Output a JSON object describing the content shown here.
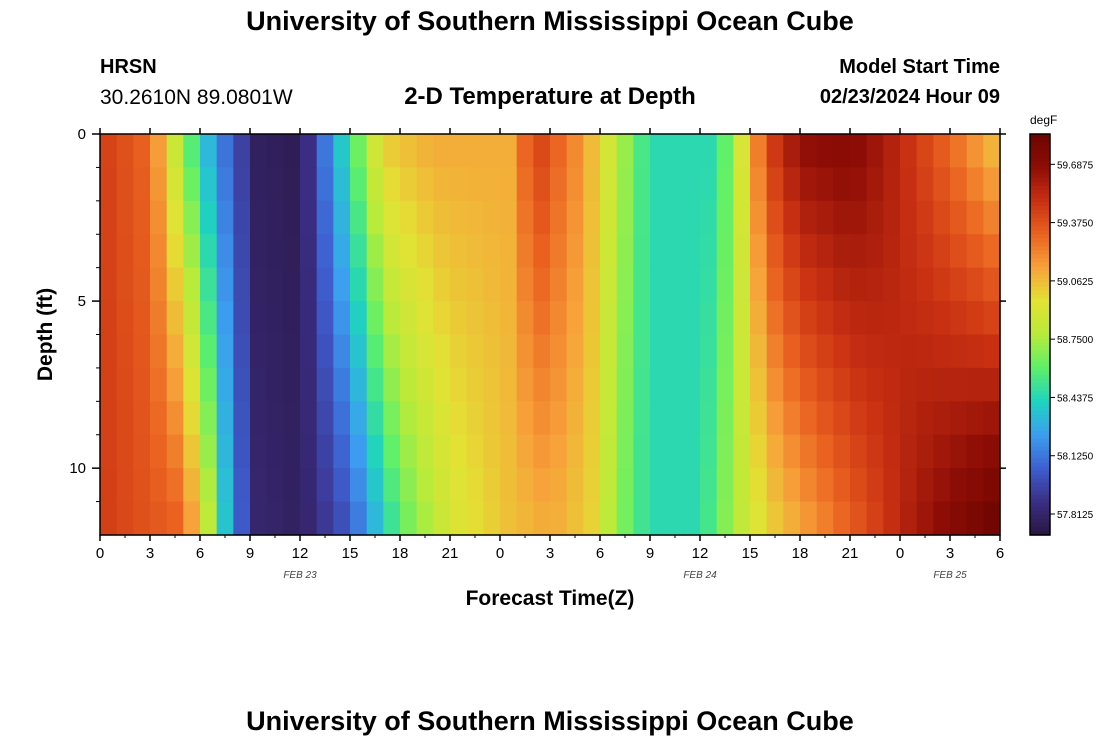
{
  "header": {
    "title": "University of Southern Mississippi Ocean Cube",
    "station": "HRSN",
    "coordinates": "30.2610N  89.0801W",
    "subtitle": "2-D Temperature at Depth",
    "start_label": "Model Start Time",
    "start_value": "02/23/2024 Hour 09"
  },
  "footer": {
    "title": "University of Southern Mississippi Ocean Cube"
  },
  "chart_data": {
    "type": "heatmap",
    "xlabel": "Forecast Time(Z)",
    "ylabel": "Depth (ft)",
    "x_tick_labels": [
      "0",
      "3",
      "6",
      "9",
      "12",
      "15",
      "18",
      "21",
      "0",
      "3",
      "6",
      "9",
      "12",
      "15",
      "18",
      "21",
      "0",
      "3",
      "6"
    ],
    "date_labels": [
      {
        "label": "FEB 23",
        "tick_index": 4
      },
      {
        "label": "FEB 24",
        "tick_index": 12
      },
      {
        "label": "FEB 25",
        "tick_index": 17
      }
    ],
    "x_range_hours": [
      0,
      54
    ],
    "y_tick_labels": [
      "0",
      "5",
      "10"
    ],
    "y_tick_values": [
      0,
      5,
      10
    ],
    "ylim": [
      0,
      12
    ],
    "y_inverted": true,
    "colorbar": {
      "unit": "degF",
      "tick_labels": [
        "59.6875",
        "59.3750",
        "59.0625",
        "58.7500",
        "58.4375",
        "58.1250",
        "57.8125"
      ],
      "tick_values": [
        59.6875,
        59.375,
        59.0625,
        58.75,
        58.4375,
        58.125,
        57.8125
      ],
      "range": [
        57.7,
        59.85
      ],
      "colors": [
        "#2a1640",
        "#3b2e85",
        "#3e5fd0",
        "#3c9ff0",
        "#1fd3c0",
        "#5ef06a",
        "#b8eb3a",
        "#e3e234",
        "#f7a23a",
        "#ea6220",
        "#c93012",
        "#8e0d06",
        "#6e0500"
      ]
    },
    "depth_layers": 12,
    "time_columns": 54,
    "surface_keyframes": [
      {
        "hour": 0,
        "value": 59.45
      },
      {
        "hour": 3,
        "value": 59.3
      },
      {
        "hour": 5,
        "value": 58.7
      },
      {
        "hour": 7,
        "value": 58.2
      },
      {
        "hour": 9.5,
        "value": 57.78
      },
      {
        "hour": 12,
        "value": 57.75
      },
      {
        "hour": 14,
        "value": 58.25
      },
      {
        "hour": 16,
        "value": 58.75
      },
      {
        "hour": 17,
        "value": 59.0
      },
      {
        "hour": 20,
        "value": 59.1
      },
      {
        "hour": 24.5,
        "value": 59.1
      },
      {
        "hour": 25,
        "value": 59.25
      },
      {
        "hour": 26.5,
        "value": 59.4
      },
      {
        "hour": 29,
        "value": 59.15
      },
      {
        "hour": 31,
        "value": 58.8
      },
      {
        "hour": 33,
        "value": 58.45
      },
      {
        "hour": 37,
        "value": 58.45
      },
      {
        "hour": 38.5,
        "value": 58.9
      },
      {
        "hour": 40,
        "value": 59.4
      },
      {
        "hour": 42,
        "value": 59.65
      },
      {
        "hour": 45,
        "value": 59.7
      },
      {
        "hour": 47,
        "value": 59.6
      },
      {
        "hour": 49,
        "value": 59.45
      },
      {
        "hour": 51,
        "value": 59.3
      },
      {
        "hour": 54,
        "value": 59.05
      }
    ],
    "bottom_keyframes": [
      {
        "hour": 0,
        "value": 59.45
      },
      {
        "hour": 5,
        "value": 59.3
      },
      {
        "hour": 6.5,
        "value": 58.8
      },
      {
        "hour": 8,
        "value": 58.15
      },
      {
        "hour": 9.5,
        "value": 57.82
      },
      {
        "hour": 12,
        "value": 57.78
      },
      {
        "hour": 15,
        "value": 58.05
      },
      {
        "hour": 18,
        "value": 58.6
      },
      {
        "hour": 21,
        "value": 58.9
      },
      {
        "hour": 24.5,
        "value": 59.05
      },
      {
        "hour": 27,
        "value": 59.12
      },
      {
        "hour": 29.5,
        "value": 59.0
      },
      {
        "hour": 31,
        "value": 58.7
      },
      {
        "hour": 33,
        "value": 58.45
      },
      {
        "hour": 36,
        "value": 58.45
      },
      {
        "hour": 38,
        "value": 58.75
      },
      {
        "hour": 40,
        "value": 59.0
      },
      {
        "hour": 43,
        "value": 59.2
      },
      {
        "hour": 46,
        "value": 59.4
      },
      {
        "hour": 49,
        "value": 59.6
      },
      {
        "hour": 52,
        "value": 59.75
      },
      {
        "hour": 54,
        "value": 59.85
      }
    ]
  }
}
